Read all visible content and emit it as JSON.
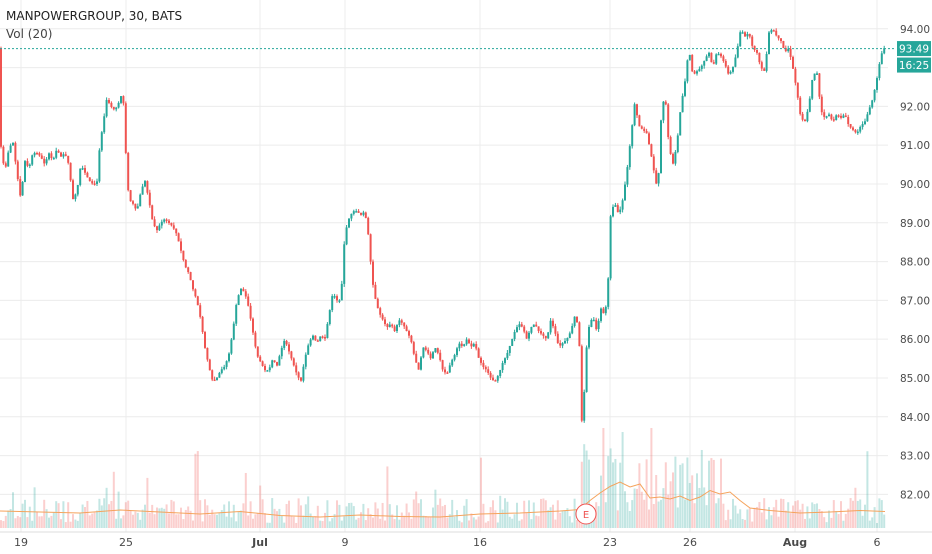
{
  "header": {
    "symbol_line": "MANPOWERGROUP, 30, BATS",
    "volume_indicator": "Vol (20)"
  },
  "colors": {
    "up": "#26a69a",
    "down": "#ef5350",
    "vol_ma": "#f5a35c",
    "grid": "#ececec",
    "price_line": "#26a69a",
    "earnings": "#ef5350"
  },
  "chart_data": {
    "type": "candlestick",
    "title": "MANPOWERGROUP, 30, BATS",
    "ylim": [
      81.6,
      94.6
    ],
    "y_ticks": [
      82.0,
      83.0,
      84.0,
      85.0,
      86.0,
      87.0,
      88.0,
      89.0,
      90.0,
      91.0,
      92.0,
      93.0,
      94.0
    ],
    "x_tick_labels": [
      "19",
      "25",
      "Jul",
      "9",
      "16",
      "23",
      "26",
      "Aug",
      "6"
    ],
    "grid": true,
    "last_price": "93.49",
    "countdown": "16:25",
    "earnings_marker": "E",
    "price_points": [
      [
        0,
        91.4
      ],
      [
        3,
        90.8
      ],
      [
        6,
        90.3
      ],
      [
        10,
        90.9
      ],
      [
        14,
        91.1
      ],
      [
        18,
        90.3
      ],
      [
        22,
        89.6
      ],
      [
        26,
        90.6
      ],
      [
        30,
        90.4
      ],
      [
        34,
        90.8
      ],
      [
        38,
        90.8
      ],
      [
        42,
        90.7
      ],
      [
        46,
        90.5
      ],
      [
        50,
        90.8
      ],
      [
        54,
        90.6
      ],
      [
        58,
        90.9
      ],
      [
        62,
        90.7
      ],
      [
        66,
        90.8
      ],
      [
        70,
        90.5
      ],
      [
        74,
        89.6
      ],
      [
        78,
        89.8
      ],
      [
        82,
        90.5
      ],
      [
        86,
        90.3
      ],
      [
        90,
        90.1
      ],
      [
        94,
        90.0
      ],
      [
        98,
        90.0
      ],
      [
        101,
        91.0
      ],
      [
        104,
        91.5
      ],
      [
        108,
        92.2
      ],
      [
        112,
        92.0
      ],
      [
        116,
        91.9
      ],
      [
        120,
        92.1
      ],
      [
        124,
        92.4
      ],
      [
        127,
        90.8
      ],
      [
        130,
        89.6
      ],
      [
        134,
        89.5
      ],
      [
        138,
        89.3
      ],
      [
        142,
        89.8
      ],
      [
        146,
        90.1
      ],
      [
        150,
        89.6
      ],
      [
        154,
        89.0
      ],
      [
        158,
        88.8
      ],
      [
        162,
        89.0
      ],
      [
        166,
        89.1
      ],
      [
        170,
        89.0
      ],
      [
        174,
        88.9
      ],
      [
        178,
        88.7
      ],
      [
        182,
        88.3
      ],
      [
        186,
        87.9
      ],
      [
        190,
        87.7
      ],
      [
        194,
        87.3
      ],
      [
        198,
        87.0
      ],
      [
        202,
        86.5
      ],
      [
        206,
        85.8
      ],
      [
        210,
        85.3
      ],
      [
        214,
        84.9
      ],
      [
        218,
        85.0
      ],
      [
        222,
        85.2
      ],
      [
        226,
        85.3
      ],
      [
        230,
        85.6
      ],
      [
        234,
        86.2
      ],
      [
        238,
        87.0
      ],
      [
        242,
        87.3
      ],
      [
        246,
        87.2
      ],
      [
        250,
        86.8
      ],
      [
        254,
        86.2
      ],
      [
        258,
        85.6
      ],
      [
        262,
        85.4
      ],
      [
        266,
        85.2
      ],
      [
        270,
        85.2
      ],
      [
        274,
        85.5
      ],
      [
        278,
        85.3
      ],
      [
        282,
        85.7
      ],
      [
        286,
        86.0
      ],
      [
        290,
        85.7
      ],
      [
        294,
        85.4
      ],
      [
        298,
        85.1
      ],
      [
        302,
        84.9
      ],
      [
        306,
        85.5
      ],
      [
        310,
        85.9
      ],
      [
        314,
        86.1
      ],
      [
        318,
        85.9
      ],
      [
        322,
        86.1
      ],
      [
        326,
        86.0
      ],
      [
        330,
        86.6
      ],
      [
        334,
        87.2
      ],
      [
        338,
        87.0
      ],
      [
        342,
        87.0
      ],
      [
        346,
        88.7
      ],
      [
        350,
        89.1
      ],
      [
        354,
        89.3
      ],
      [
        358,
        89.3
      ],
      [
        362,
        89.2
      ],
      [
        366,
        89.3
      ],
      [
        370,
        88.6
      ],
      [
        373,
        87.6
      ],
      [
        376,
        87.1
      ],
      [
        380,
        86.7
      ],
      [
        384,
        86.5
      ],
      [
        388,
        86.3
      ],
      [
        392,
        86.4
      ],
      [
        396,
        86.2
      ],
      [
        400,
        86.5
      ],
      [
        404,
        86.4
      ],
      [
        408,
        86.2
      ],
      [
        412,
        86.0
      ],
      [
        416,
        85.5
      ],
      [
        420,
        85.2
      ],
      [
        424,
        85.8
      ],
      [
        428,
        85.7
      ],
      [
        432,
        85.5
      ],
      [
        436,
        85.8
      ],
      [
        440,
        85.6
      ],
      [
        444,
        85.2
      ],
      [
        448,
        85.1
      ],
      [
        452,
        85.4
      ],
      [
        456,
        85.6
      ],
      [
        460,
        85.9
      ],
      [
        464,
        85.8
      ],
      [
        468,
        86.0
      ],
      [
        472,
        85.8
      ],
      [
        476,
        85.9
      ],
      [
        480,
        85.5
      ],
      [
        484,
        85.3
      ],
      [
        488,
        85.2
      ],
      [
        492,
        85.0
      ],
      [
        496,
        84.9
      ],
      [
        500,
        85.1
      ],
      [
        504,
        85.4
      ],
      [
        508,
        85.6
      ],
      [
        512,
        85.9
      ],
      [
        516,
        86.2
      ],
      [
        520,
        86.4
      ],
      [
        524,
        86.3
      ],
      [
        528,
        86.0
      ],
      [
        532,
        86.3
      ],
      [
        536,
        86.4
      ],
      [
        540,
        86.2
      ],
      [
        544,
        86.1
      ],
      [
        548,
        86.0
      ],
      [
        552,
        86.5
      ],
      [
        556,
        86.2
      ],
      [
        560,
        85.8
      ],
      [
        564,
        85.9
      ],
      [
        568,
        86.0
      ],
      [
        572,
        86.2
      ],
      [
        576,
        86.6
      ],
      [
        580,
        86.3
      ],
      [
        583,
        83.9
      ],
      [
        585,
        84.4
      ],
      [
        587,
        85.6
      ],
      [
        590,
        86.3
      ],
      [
        594,
        86.6
      ],
      [
        598,
        86.2
      ],
      [
        602,
        86.8
      ],
      [
        606,
        86.6
      ],
      [
        609,
        87.3
      ],
      [
        612,
        89.3
      ],
      [
        616,
        89.5
      ],
      [
        620,
        89.2
      ],
      [
        624,
        89.6
      ],
      [
        628,
        90.3
      ],
      [
        632,
        91.2
      ],
      [
        636,
        92.1
      ],
      [
        640,
        91.5
      ],
      [
        644,
        91.4
      ],
      [
        648,
        91.3
      ],
      [
        652,
        90.8
      ],
      [
        656,
        90.2
      ],
      [
        659,
        89.8
      ],
      [
        662,
        91.6
      ],
      [
        666,
        92.4
      ],
      [
        670,
        91.0
      ],
      [
        674,
        90.5
      ],
      [
        678,
        91.0
      ],
      [
        682,
        92.0
      ],
      [
        686,
        92.6
      ],
      [
        690,
        93.5
      ],
      [
        694,
        92.8
      ],
      [
        698,
        92.9
      ],
      [
        702,
        93.0
      ],
      [
        706,
        93.2
      ],
      [
        710,
        93.4
      ],
      [
        714,
        93.0
      ],
      [
        718,
        93.4
      ],
      [
        722,
        93.3
      ],
      [
        726,
        93.1
      ],
      [
        730,
        92.8
      ],
      [
        734,
        93.0
      ],
      [
        738,
        93.4
      ],
      [
        742,
        94.0
      ],
      [
        746,
        93.8
      ],
      [
        750,
        93.9
      ],
      [
        754,
        93.5
      ],
      [
        758,
        93.4
      ],
      [
        762,
        93.0
      ],
      [
        766,
        92.9
      ],
      [
        770,
        93.9
      ],
      [
        774,
        94.0
      ],
      [
        778,
        93.8
      ],
      [
        782,
        93.7
      ],
      [
        786,
        93.4
      ],
      [
        790,
        93.5
      ],
      [
        794,
        93.0
      ],
      [
        798,
        92.4
      ],
      [
        802,
        91.7
      ],
      [
        806,
        91.6
      ],
      [
        810,
        92.0
      ],
      [
        814,
        92.8
      ],
      [
        818,
        92.9
      ],
      [
        822,
        91.9
      ],
      [
        826,
        91.7
      ],
      [
        830,
        91.8
      ],
      [
        834,
        91.6
      ],
      [
        838,
        91.8
      ],
      [
        842,
        91.7
      ],
      [
        846,
        91.8
      ],
      [
        850,
        91.5
      ],
      [
        854,
        91.4
      ],
      [
        858,
        91.3
      ],
      [
        862,
        91.5
      ],
      [
        866,
        91.6
      ],
      [
        870,
        91.9
      ],
      [
        874,
        92.2
      ],
      [
        878,
        92.7
      ],
      [
        882,
        93.3
      ],
      [
        885,
        93.5
      ]
    ],
    "volume_ma": [
      [
        0,
        0.34
      ],
      [
        40,
        0.32
      ],
      [
        80,
        0.3
      ],
      [
        120,
        0.36
      ],
      [
        160,
        0.32
      ],
      [
        200,
        0.28
      ],
      [
        240,
        0.33
      ],
      [
        280,
        0.25
      ],
      [
        320,
        0.22
      ],
      [
        360,
        0.26
      ],
      [
        400,
        0.23
      ],
      [
        440,
        0.22
      ],
      [
        480,
        0.28
      ],
      [
        520,
        0.3
      ],
      [
        560,
        0.34
      ],
      [
        580,
        0.37
      ],
      [
        590,
        0.55
      ],
      [
        600,
        0.7
      ],
      [
        610,
        0.83
      ],
      [
        620,
        0.92
      ],
      [
        630,
        0.82
      ],
      [
        640,
        0.88
      ],
      [
        650,
        0.6
      ],
      [
        660,
        0.62
      ],
      [
        670,
        0.58
      ],
      [
        680,
        0.64
      ],
      [
        690,
        0.55
      ],
      [
        700,
        0.62
      ],
      [
        710,
        0.75
      ],
      [
        720,
        0.68
      ],
      [
        730,
        0.72
      ],
      [
        740,
        0.55
      ],
      [
        750,
        0.4
      ],
      [
        770,
        0.35
      ],
      [
        800,
        0.3
      ],
      [
        830,
        0.32
      ],
      [
        860,
        0.35
      ],
      [
        885,
        0.33
      ]
    ]
  }
}
